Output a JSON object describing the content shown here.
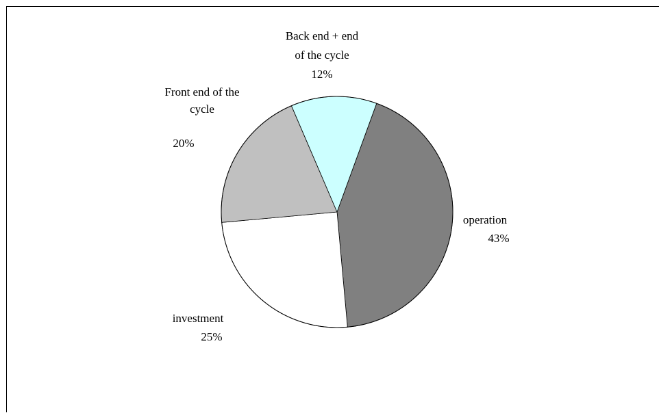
{
  "chart_data": {
    "type": "pie",
    "start_angle_deg": 20,
    "direction": "clockwise",
    "slices": [
      {
        "label": "operation",
        "label_lines": [
          "operation"
        ],
        "value": 43,
        "value_label": "43%",
        "color": "#808080"
      },
      {
        "label": "investment",
        "label_lines": [
          "investment"
        ],
        "value": 25,
        "value_label": "25%",
        "color": "#ffffff"
      },
      {
        "label": "Front end of the cycle",
        "label_lines": [
          "Front end of the",
          "cycle"
        ],
        "value": 20,
        "value_label": "20%",
        "color": "#c0c0c0"
      },
      {
        "label": "Back end + end of the cycle",
        "label_lines": [
          "Back end + end",
          "of the cycle"
        ],
        "value": 12,
        "value_label": "12%",
        "color": "#ccffff"
      }
    ]
  }
}
